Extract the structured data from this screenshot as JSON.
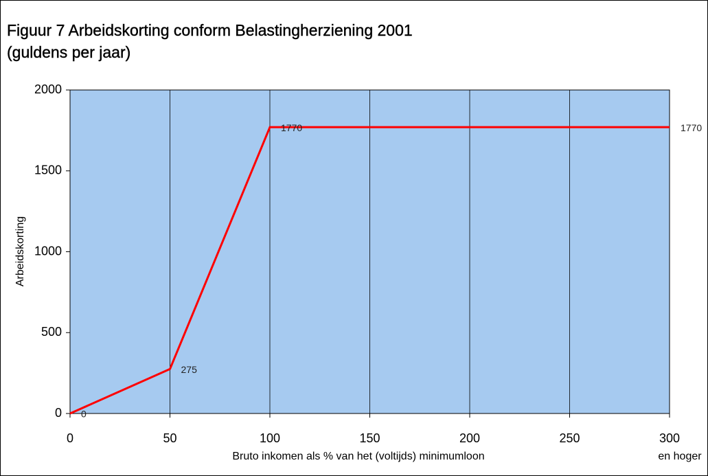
{
  "chart_data": {
    "type": "line",
    "title": "Figuur 7  Arbeidskorting conform Belastingherziening 2001",
    "subtitle": "(guldens per jaar)",
    "x_label": "Bruto inkomen als % van het (voltijds) minimumloon",
    "y_label": "Arbeidskorting",
    "annotation": "en hoger",
    "x": [
      0,
      50,
      100,
      300
    ],
    "series": [
      {
        "name": "Arbeidskorting",
        "color": "#ff0000",
        "values": [
          0,
          275,
          1770,
          1770
        ]
      }
    ],
    "xlim": [
      0,
      300
    ],
    "xticks": [
      0,
      50,
      100,
      150,
      200,
      250,
      300
    ],
    "ylim": [
      0,
      2000
    ],
    "yticks": [
      0,
      500,
      1000,
      1500,
      2000
    ],
    "grid": true,
    "plot_background": "#a6caf0"
  }
}
